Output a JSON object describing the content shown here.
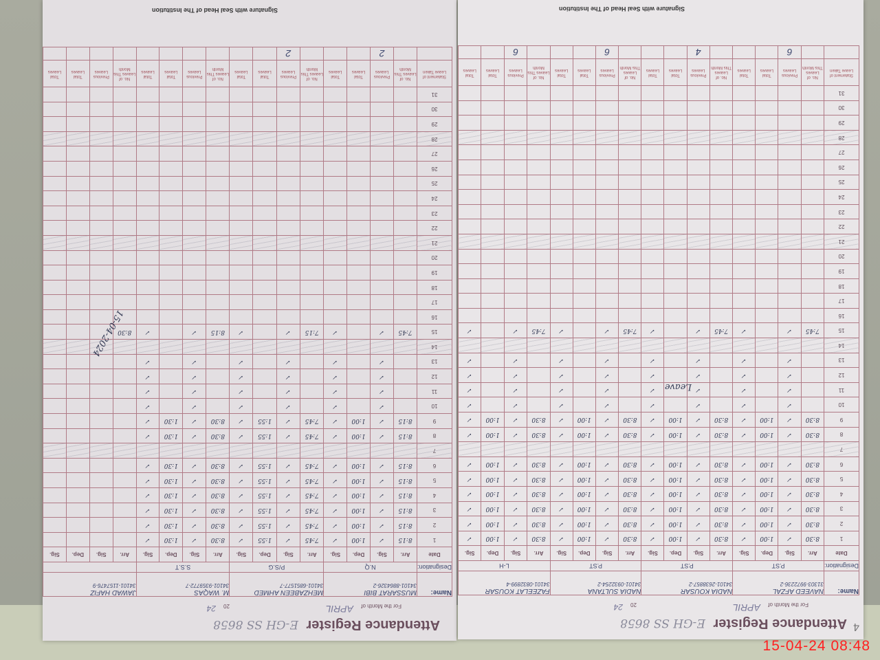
{
  "timestamp": "15-04-24  08:48",
  "common": {
    "title": "Attendance Register",
    "month_label": "For the Month of",
    "year_label": "20",
    "name_label": "Name:",
    "designation_label": "Designation:",
    "date_label": "Date",
    "sub_headers": [
      "Arr.",
      "Sig.",
      "Dep.",
      "Sig."
    ],
    "leave_statement_label": "Statement of Leave Taken",
    "leave_headers": [
      "No. of Leaves This Month",
      "Previous Leaves",
      "Total Leaves"
    ],
    "signature_label": "Signature with Seal Head of The Institution"
  },
  "pages": [
    {
      "id": "left",
      "page_number": "",
      "register_no": "E-GH SS 8658",
      "month": "APRIL",
      "year": "24",
      "staff": [
        {
          "name": "MUSSARAT BIBI",
          "cnic": "34101-8864326-2",
          "designation": "N.Q",
          "arr": "8:15",
          "dep": "1:00",
          "leave_prev": "2"
        },
        {
          "name": "MEHZABEEN AHMED",
          "cnic": "34101-6851577-7",
          "designation": "P/S.G",
          "arr": "7:45",
          "dep": "1:55",
          "leave_prev": "2"
        },
        {
          "name": "M. WAQAS",
          "cnic": "34101-9359772-7",
          "designation": "S.S.T",
          "arr": "8:30",
          "dep": "1:30",
          "leave_prev": ""
        },
        {
          "name": "JAWAD HAFIZ",
          "cnic": "34101-1157476-9",
          "designation": "",
          "arr": "",
          "dep": "",
          "leave_prev": ""
        }
      ],
      "day15_entries": [
        "7:45",
        "7:15",
        "8:15",
        "8:30"
      ],
      "note": "15-04-2024"
    },
    {
      "id": "right",
      "page_number": "4",
      "register_no": "E-GH SS 8658",
      "month": "APRIL",
      "year": "24",
      "staff": [
        {
          "name": "NAVEED AFZAL",
          "cnic": "31303-9972236-2",
          "designation": "P.ST",
          "arr": "8:30",
          "dep": "1:00",
          "leave_prev": "6"
        },
        {
          "name": "NADIA KOUSAR",
          "cnic": "34101-2638857-2",
          "designation": "P.ST",
          "arr": "8:30",
          "dep": "1:00",
          "leave_prev": "4"
        },
        {
          "name": "NADIA SULTANA",
          "cnic": "34101-0932254-2",
          "designation": "P.ST",
          "arr": "8:30",
          "dep": "1:00",
          "leave_prev": "6"
        },
        {
          "name": "FAZEELAT KOUSAR",
          "cnic": "34101-0832899-4",
          "designation": "L-H",
          "arr": "8:30",
          "dep": "1:00",
          "leave_prev": "6"
        }
      ],
      "day15_entries": [
        "7:45",
        "7:45",
        "7:45",
        "7:45"
      ],
      "note": "Leave"
    }
  ],
  "days": [
    1,
    2,
    3,
    4,
    5,
    6,
    7,
    8,
    9,
    10,
    11,
    12,
    13,
    14,
    15,
    16,
    17,
    18,
    19,
    20,
    21,
    22,
    23,
    24,
    25,
    26,
    27,
    28,
    29,
    30,
    31
  ],
  "sundays": [
    7,
    14,
    21,
    28
  ]
}
